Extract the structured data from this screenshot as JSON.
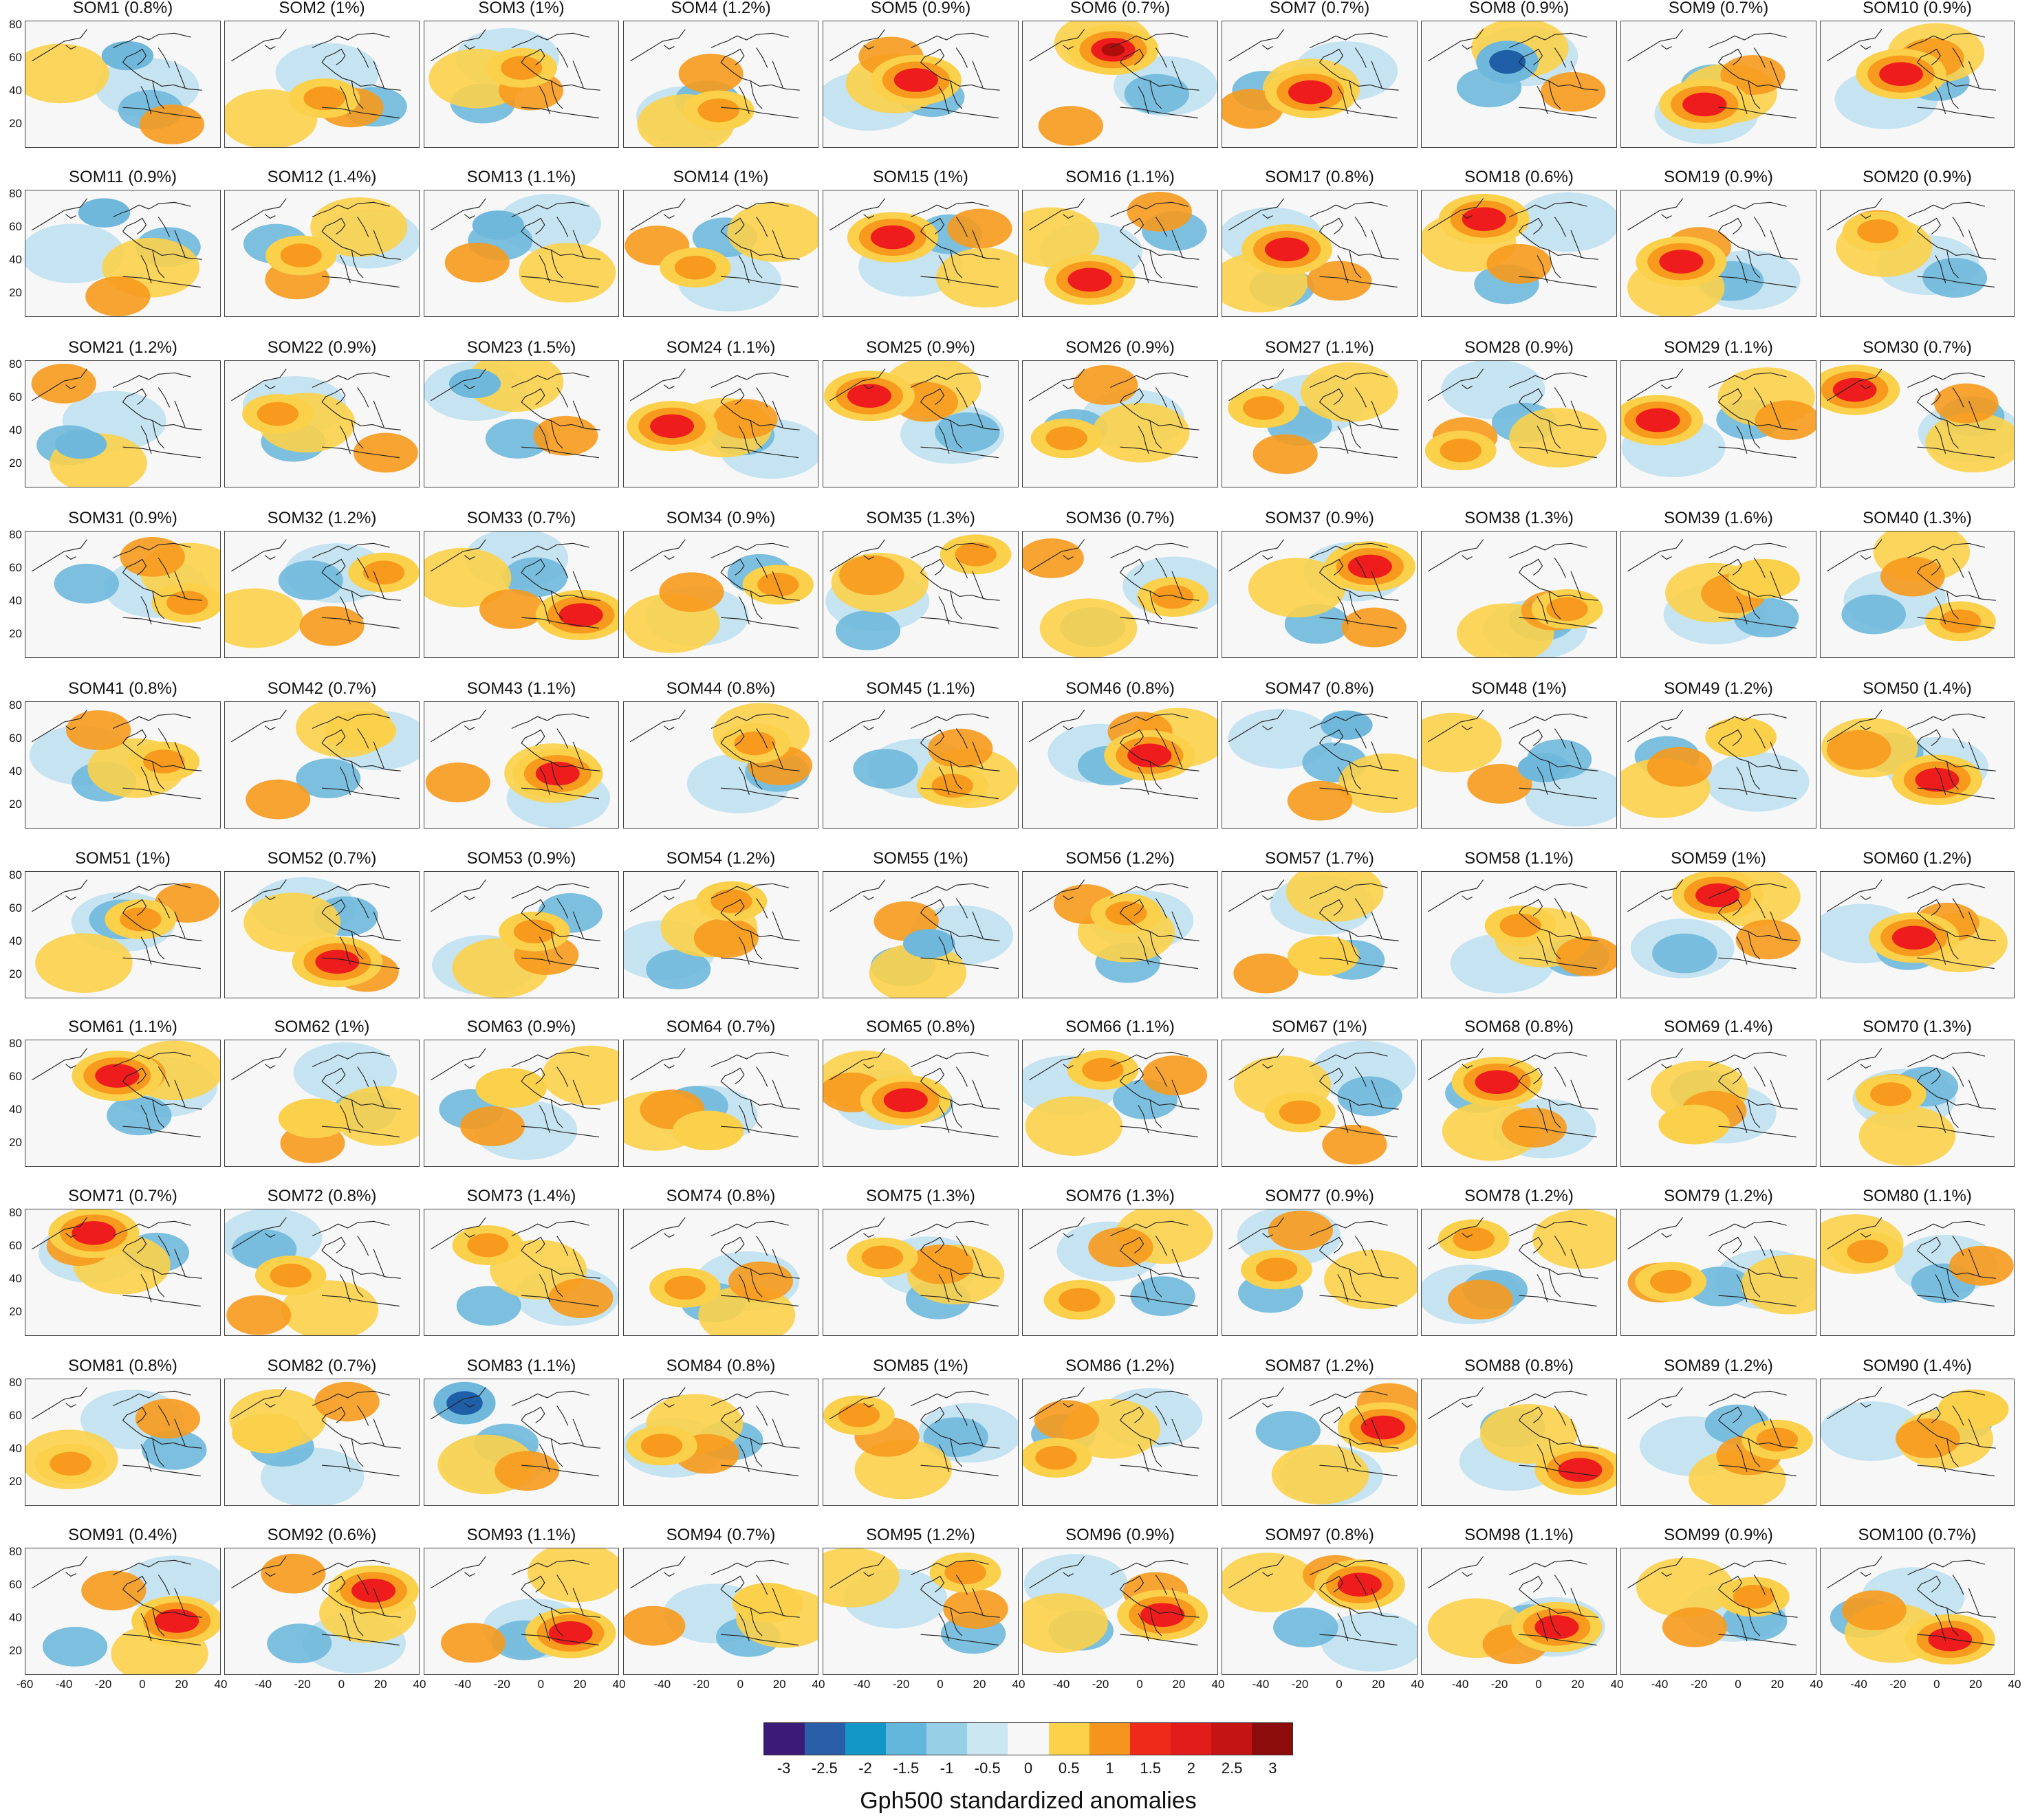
{
  "figure": {
    "x_ticks": [
      "-60",
      "-40",
      "-20",
      "0",
      "20",
      "40"
    ],
    "y_ticks": [
      "80",
      "60",
      "40",
      "20"
    ],
    "panels": [
      {
        "title": "SOM1 (0.8%)",
        "dom": "b"
      },
      {
        "title": "SOM2 (1%)",
        "dom": "o"
      },
      {
        "title": "SOM3 (1%)",
        "dom": "o"
      },
      {
        "title": "SOM4 (1.2%)",
        "dom": "o"
      },
      {
        "title": "SOM5 (0.9%)",
        "dom": "r"
      },
      {
        "title": "SOM6 (0.7%)",
        "dom": "dr"
      },
      {
        "title": "SOM7 (0.7%)",
        "dom": "r"
      },
      {
        "title": "SOM8 (0.9%)",
        "dom": "db"
      },
      {
        "title": "SOM9 (0.7%)",
        "dom": "r"
      },
      {
        "title": "SOM10 (0.9%)",
        "dom": "r"
      },
      {
        "title": "SOM11 (0.9%)",
        "dom": "b"
      },
      {
        "title": "SOM12 (1.4%)",
        "dom": "o"
      },
      {
        "title": "SOM13 (1.1%)",
        "dom": "b"
      },
      {
        "title": "SOM14 (1%)",
        "dom": "o"
      },
      {
        "title": "SOM15 (1%)",
        "dom": "r"
      },
      {
        "title": "SOM16 (1.1%)",
        "dom": "r"
      },
      {
        "title": "SOM17 (0.8%)",
        "dom": "r"
      },
      {
        "title": "SOM18 (0.6%)",
        "dom": "r"
      },
      {
        "title": "SOM19 (0.9%)",
        "dom": "r"
      },
      {
        "title": "SOM20 (0.9%)",
        "dom": "o"
      },
      {
        "title": "SOM21 (1.2%)",
        "dom": "b"
      },
      {
        "title": "SOM22 (0.9%)",
        "dom": "o"
      },
      {
        "title": "SOM23 (1.5%)",
        "dom": "b"
      },
      {
        "title": "SOM24 (1.1%)",
        "dom": "r"
      },
      {
        "title": "SOM25 (0.9%)",
        "dom": "r"
      },
      {
        "title": "SOM26 (0.9%)",
        "dom": "o"
      },
      {
        "title": "SOM27 (1.1%)",
        "dom": "o"
      },
      {
        "title": "SOM28 (0.9%)",
        "dom": "o"
      },
      {
        "title": "SOM29 (1.1%)",
        "dom": "r"
      },
      {
        "title": "SOM30 (0.7%)",
        "dom": "r"
      },
      {
        "title": "SOM31 (0.9%)",
        "dom": "o"
      },
      {
        "title": "SOM32 (1.2%)",
        "dom": "o"
      },
      {
        "title": "SOM33 (0.7%)",
        "dom": "r"
      },
      {
        "title": "SOM34 (0.9%)",
        "dom": "o"
      },
      {
        "title": "SOM35 (1.3%)",
        "dom": "o"
      },
      {
        "title": "SOM36 (0.7%)",
        "dom": "o"
      },
      {
        "title": "SOM37 (0.9%)",
        "dom": "r"
      },
      {
        "title": "SOM38 (1.3%)",
        "dom": "o"
      },
      {
        "title": "SOM39 (1.6%)",
        "dom": "y"
      },
      {
        "title": "SOM40 (1.3%)",
        "dom": "o"
      },
      {
        "title": "SOM41 (0.8%)",
        "dom": "o"
      },
      {
        "title": "SOM42 (0.7%)",
        "dom": "y"
      },
      {
        "title": "SOM43 (1.1%)",
        "dom": "r"
      },
      {
        "title": "SOM44 (0.8%)",
        "dom": "o"
      },
      {
        "title": "SOM45 (1.1%)",
        "dom": "o"
      },
      {
        "title": "SOM46 (0.8%)",
        "dom": "r"
      },
      {
        "title": "SOM47 (0.8%)",
        "dom": "b"
      },
      {
        "title": "SOM48 (1%)",
        "dom": "b"
      },
      {
        "title": "SOM49 (1.2%)",
        "dom": "y"
      },
      {
        "title": "SOM50 (1.4%)",
        "dom": "r"
      },
      {
        "title": "SOM51 (1%)",
        "dom": "o"
      },
      {
        "title": "SOM52 (0.7%)",
        "dom": "r"
      },
      {
        "title": "SOM53 (0.9%)",
        "dom": "o"
      },
      {
        "title": "SOM54 (1.2%)",
        "dom": "o"
      },
      {
        "title": "SOM55 (1%)",
        "dom": "b"
      },
      {
        "title": "SOM56 (1.2%)",
        "dom": "o"
      },
      {
        "title": "SOM57 (1.7%)",
        "dom": "y"
      },
      {
        "title": "SOM58 (1.1%)",
        "dom": "o"
      },
      {
        "title": "SOM59 (1%)",
        "dom": "r"
      },
      {
        "title": "SOM60 (1.2%)",
        "dom": "r"
      },
      {
        "title": "SOM61 (1.1%)",
        "dom": "r"
      },
      {
        "title": "SOM62 (1%)",
        "dom": "y"
      },
      {
        "title": "SOM63 (0.9%)",
        "dom": "y"
      },
      {
        "title": "SOM64 (0.7%)",
        "dom": "y"
      },
      {
        "title": "SOM65 (0.8%)",
        "dom": "r"
      },
      {
        "title": "SOM66 (1.1%)",
        "dom": "o"
      },
      {
        "title": "SOM67 (1%)",
        "dom": "o"
      },
      {
        "title": "SOM68 (0.8%)",
        "dom": "r"
      },
      {
        "title": "SOM69 (1.4%)",
        "dom": "y"
      },
      {
        "title": "SOM70 (1.3%)",
        "dom": "o"
      },
      {
        "title": "SOM71 (0.7%)",
        "dom": "r"
      },
      {
        "title": "SOM72 (0.8%)",
        "dom": "o"
      },
      {
        "title": "SOM73 (1.4%)",
        "dom": "o"
      },
      {
        "title": "SOM74 (0.8%)",
        "dom": "o"
      },
      {
        "title": "SOM75 (1.3%)",
        "dom": "o"
      },
      {
        "title": "SOM76 (1.3%)",
        "dom": "o"
      },
      {
        "title": "SOM77 (0.9%)",
        "dom": "o"
      },
      {
        "title": "SOM78 (1.2%)",
        "dom": "o"
      },
      {
        "title": "SOM79 (1.2%)",
        "dom": "o"
      },
      {
        "title": "SOM80 (1.1%)",
        "dom": "o"
      },
      {
        "title": "SOM81 (0.8%)",
        "dom": "o"
      },
      {
        "title": "SOM82 (0.7%)",
        "dom": "y"
      },
      {
        "title": "SOM83 (1.1%)",
        "dom": "db"
      },
      {
        "title": "SOM84 (0.8%)",
        "dom": "o"
      },
      {
        "title": "SOM85 (1%)",
        "dom": "o"
      },
      {
        "title": "SOM86 (1.2%)",
        "dom": "o"
      },
      {
        "title": "SOM87 (1.2%)",
        "dom": "r"
      },
      {
        "title": "SOM88 (0.8%)",
        "dom": "r"
      },
      {
        "title": "SOM89 (1.2%)",
        "dom": "o"
      },
      {
        "title": "SOM90 (1.4%)",
        "dom": "y"
      },
      {
        "title": "SOM91 (0.4%)",
        "dom": "r"
      },
      {
        "title": "SOM92 (0.6%)",
        "dom": "r"
      },
      {
        "title": "SOM93 (1.1%)",
        "dom": "r"
      },
      {
        "title": "SOM94 (0.7%)",
        "dom": "y"
      },
      {
        "title": "SOM95 (1.2%)",
        "dom": "o"
      },
      {
        "title": "SOM96 (0.9%)",
        "dom": "r"
      },
      {
        "title": "SOM97 (0.8%)",
        "dom": "r"
      },
      {
        "title": "SOM98 (1.1%)",
        "dom": "r"
      },
      {
        "title": "SOM99 (0.9%)",
        "dom": "o"
      },
      {
        "title": "SOM100 (0.7%)",
        "dom": "r"
      }
    ],
    "colors": {
      "db": "#1f5fa8",
      "b": "#6fb8dc",
      "lb": "#bfe0ef",
      "y": "#fbd04a",
      "o": "#f79a1d",
      "r": "#ee1c1c",
      "dr": "#b00d0d"
    }
  },
  "legend": {
    "title": "Gph500 standardized anomalies",
    "colors": [
      "#3b1a78",
      "#2a5ea8",
      "#1397c6",
      "#63b6dc",
      "#96cfe6",
      "#cbe7f2",
      "#f7f7f7",
      "#fcd24b",
      "#f7941e",
      "#ef2a1a",
      "#e21b1b",
      "#c41414",
      "#8c0b0b"
    ],
    "tick_labels": [
      "-3",
      "-2.5",
      "-2",
      "-1.5",
      "-1",
      "-0.5",
      "0",
      "0.5",
      "1",
      "1.5",
      "2",
      "2.5",
      "3"
    ]
  }
}
